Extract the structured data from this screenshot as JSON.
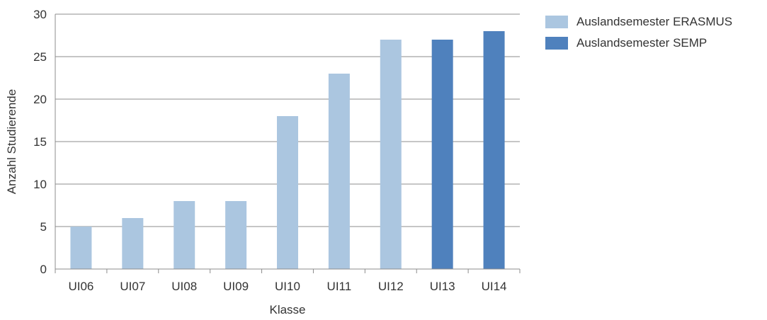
{
  "chart_data": {
    "type": "bar",
    "title": "",
    "xlabel": "Klasse",
    "ylabel": "Anzahl Studierende",
    "ylim": [
      0,
      30
    ],
    "yticks": [
      0,
      5,
      10,
      15,
      20,
      25,
      30
    ],
    "grid": true,
    "legend_position": "right",
    "categories": [
      "UI06",
      "UI07",
      "UI08",
      "UI09",
      "UI10",
      "UI11",
      "UI12",
      "UI13",
      "UI14"
    ],
    "series": [
      {
        "name": "Auslandsemester ERASMUS",
        "color": "#abc6e0",
        "values": [
          5,
          6,
          8,
          8,
          18,
          23,
          27,
          null,
          null
        ]
      },
      {
        "name": "Auslandsemester SEMP",
        "color": "#4f81bd",
        "values": [
          null,
          null,
          null,
          null,
          null,
          null,
          null,
          27,
          28
        ]
      }
    ]
  },
  "legend": [
    {
      "label": "Auslandsemester ERASMUS",
      "color": "#abc6e0"
    },
    {
      "label": "Auslandsemester SEMP",
      "color": "#4f81bd"
    }
  ]
}
